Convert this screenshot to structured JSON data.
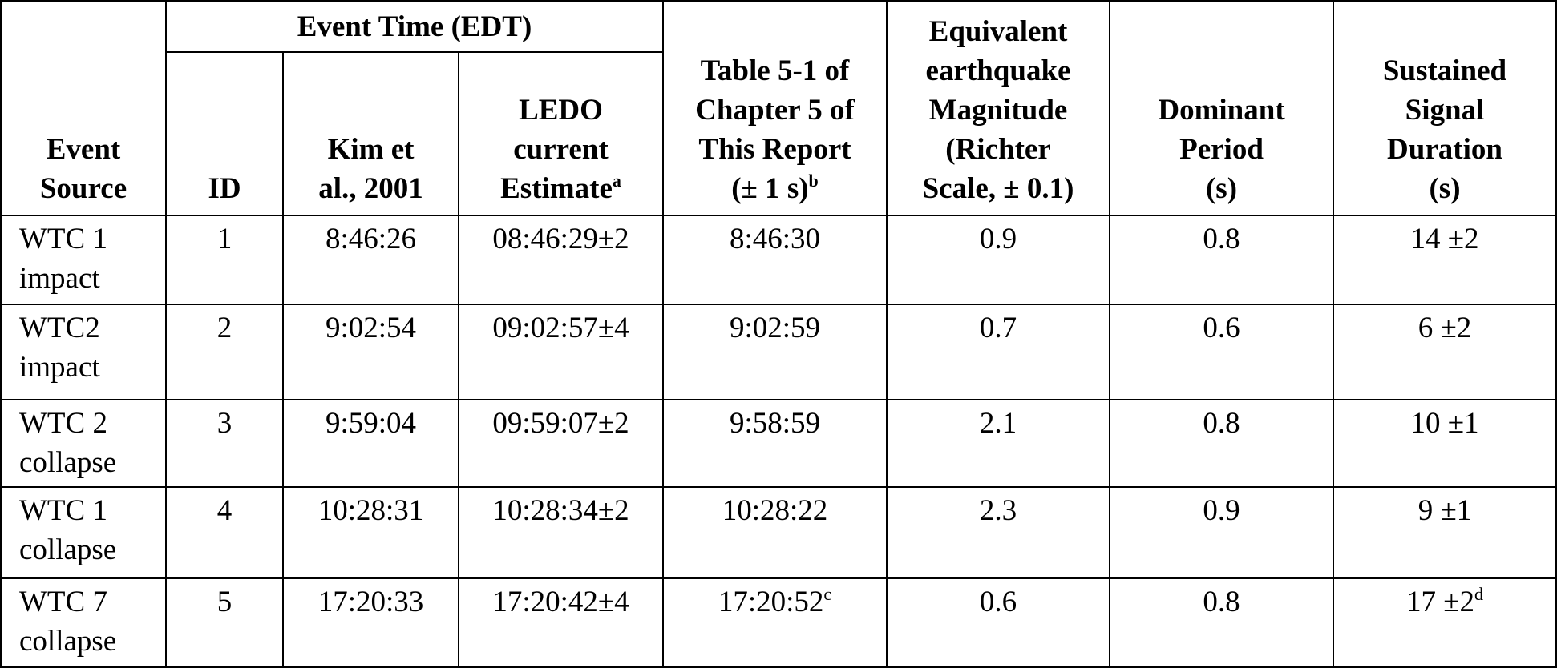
{
  "table": {
    "header": {
      "event_source": [
        "Event",
        "Source"
      ],
      "event_time": "Event Time (EDT)",
      "columns": [
        {
          "lines": [
            "ID"
          ]
        },
        {
          "lines": [
            "Kim et",
            "al., 2001"
          ]
        },
        {
          "lines": [
            "LEDO",
            "current",
            "Estimate"
          ],
          "note": "a"
        },
        {
          "lines": [
            "Table 5-1 of",
            "Chapter 5 of",
            "This Report",
            "(± 1 s)"
          ],
          "note": "b"
        },
        {
          "lines": [
            "Equivalent",
            "earthquake",
            "Magnitude",
            "(Richter",
            "Scale, ± 0.1)"
          ]
        },
        {
          "lines": [
            "Dominant",
            "Period",
            "(s)"
          ]
        },
        {
          "lines": [
            "Sustained",
            "Signal",
            "Duration",
            "(s)"
          ]
        }
      ]
    },
    "rows": [
      {
        "source": [
          "WTC 1",
          "impact"
        ],
        "cells": [
          1,
          "8:46:26",
          "08:46:29±2",
          "8:46:30",
          0.9,
          0.8,
          "14 ±2"
        ]
      },
      {
        "source": [
          "WTC2",
          "impact"
        ],
        "cells": [
          2,
          "9:02:54",
          "09:02:57±4",
          "9:02:59",
          0.7,
          0.6,
          "6 ±2"
        ]
      },
      {
        "source": [
          "WTC 2",
          "collapse"
        ],
        "cells": [
          3,
          "9:59:04",
          "09:59:07±2",
          "9:58:59",
          2.1,
          0.8,
          "10 ±1"
        ]
      },
      {
        "source": [
          "WTC 1",
          "collapse"
        ],
        "cells": [
          4,
          "10:28:31",
          "10:28:34±2",
          "10:28:22",
          2.3,
          0.9,
          "9 ±1"
        ]
      },
      {
        "source": [
          "WTC 7",
          "collapse"
        ],
        "cells": [
          5,
          "17:20:33",
          "17:20:42±4",
          {
            "text": "17:20:52",
            "note": "c"
          },
          0.6,
          0.8,
          {
            "text": "17 ±2",
            "note": "d"
          }
        ]
      }
    ]
  }
}
